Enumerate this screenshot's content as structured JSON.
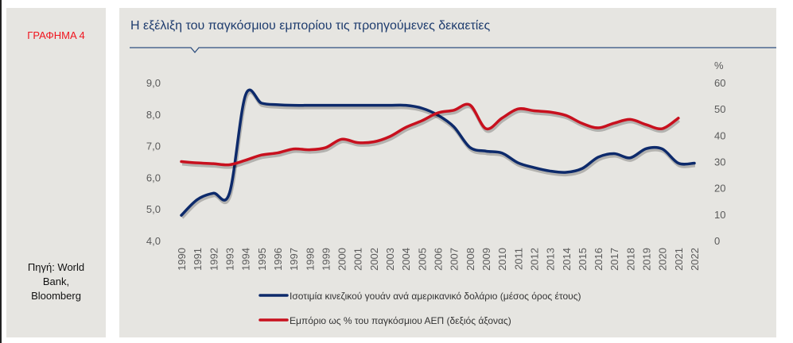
{
  "figure_label": "ΓΡΑΦΗΜΑ 4",
  "source": [
    "Πηγή: World",
    "Bank,",
    "Bloomberg"
  ],
  "chart_data": {
    "type": "line",
    "title": "Η εξέλιξη του παγκόσμιου εμπορίου τις προηγούμενες δεκαετίες",
    "x": [
      1990,
      1991,
      1992,
      1993,
      1994,
      1995,
      1996,
      1997,
      1998,
      1999,
      2000,
      2001,
      2002,
      2003,
      2004,
      2005,
      2006,
      2007,
      2008,
      2009,
      2010,
      2011,
      2012,
      2013,
      2014,
      2015,
      2016,
      2017,
      2018,
      2019,
      2020,
      2021,
      2022
    ],
    "x_tick_labels": [
      "1990",
      "1991",
      "1992",
      "1993",
      "1994",
      "1995",
      "1996",
      "1997",
      "1998",
      "1999",
      "2000",
      "2001",
      "2002",
      "2003",
      "2004",
      "2005",
      "2006",
      "2007",
      "2008",
      "2009",
      "2010",
      "2011",
      "2012",
      "2013",
      "2014",
      "2015",
      "2016",
      "2017",
      "2018",
      "2019",
      "2020",
      "2021",
      "2022"
    ],
    "left_axis": {
      "ylim": [
        4,
        9
      ],
      "tick_labels": [
        "4,0",
        "5,0",
        "6,0",
        "7,0",
        "8,0",
        "9,0"
      ]
    },
    "right_axis": {
      "label": "%",
      "ylim": [
        0,
        60
      ],
      "tick_labels": [
        "0",
        "10",
        "20",
        "30",
        "40",
        "50",
        "60"
      ]
    },
    "series": [
      {
        "name": "Ισοτιμία κινεζικού γουάν ανά αμερικανικό δολάριο (μέσος όρος έτους)",
        "axis": "left",
        "color": "#0d2a6b",
        "values": [
          4.8,
          5.3,
          5.5,
          5.5,
          8.6,
          8.35,
          8.3,
          8.28,
          8.28,
          8.28,
          8.28,
          8.28,
          8.28,
          8.28,
          8.28,
          8.19,
          7.97,
          7.6,
          6.95,
          6.83,
          6.77,
          6.46,
          6.31,
          6.2,
          6.16,
          6.28,
          6.64,
          6.75,
          6.62,
          6.91,
          6.9,
          6.45,
          6.45
        ]
      },
      {
        "name": "Εμπόριο ως % του παγκόσμιου ΑΕΠ (δεξιός άξονας)",
        "axis": "right",
        "color": "#c8101e",
        "values": [
          30,
          29.5,
          29.2,
          28.8,
          30.5,
          32.5,
          33.3,
          34.8,
          34.5,
          35.3,
          38.5,
          37.2,
          37.5,
          39.5,
          43,
          45.5,
          48.5,
          49.5,
          51.5,
          42.5,
          46.5,
          50,
          49.3,
          48.8,
          47.5,
          44.5,
          42.8,
          44.6,
          46,
          44,
          42.5,
          46.5,
          null
        ]
      }
    ],
    "grid": false,
    "legend_position": "bottom"
  }
}
